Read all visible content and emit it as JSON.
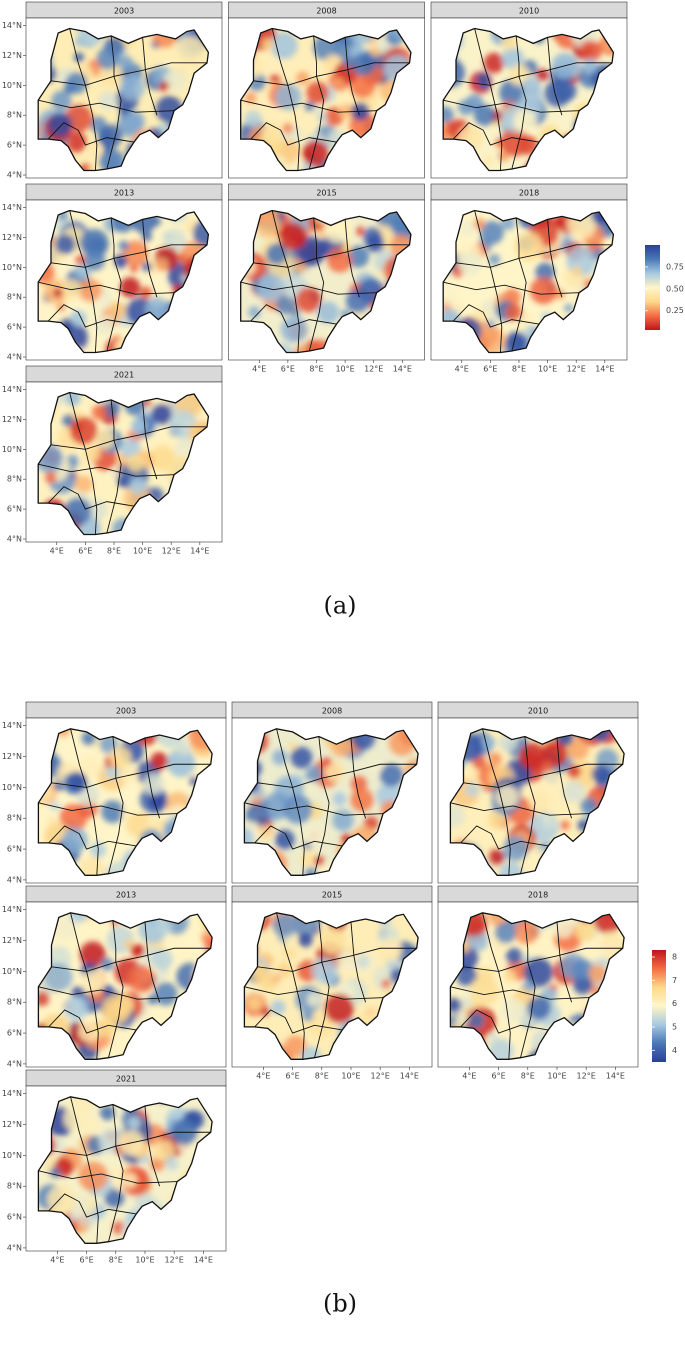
{
  "figures": [
    {
      "caption": "(a)",
      "panels": [
        "2003",
        "2008",
        "2010",
        "2013",
        "2015",
        "2018",
        "2021"
      ],
      "xlim": [
        1.85,
        15.55
      ],
      "ylim": [
        3.8,
        14.5
      ],
      "xticks": [
        {
          "value": 4,
          "label": "4°E"
        },
        {
          "value": 6,
          "label": "6°E"
        },
        {
          "value": 8,
          "label": "8°E"
        },
        {
          "value": 10,
          "label": "10°E"
        },
        {
          "value": 12,
          "label": "12°E"
        },
        {
          "value": 14,
          "label": "14°E"
        }
      ],
      "yticks": [
        {
          "value": 4,
          "label": "4°N"
        },
        {
          "value": 6,
          "label": "6°N"
        },
        {
          "value": 8,
          "label": "8°N"
        },
        {
          "value": 10,
          "label": "10°N"
        },
        {
          "value": 12,
          "label": "12°N"
        },
        {
          "value": 14,
          "label": "14°N"
        }
      ],
      "colorbar": {
        "lim": [
          0.03,
          1.0
        ],
        "ticks": [
          0.25,
          {
            "value": 0.5,
            "label": "0.50"
          },
          0.75
        ],
        "colors": [
          "#c0141c",
          "#f46d43",
          "#fdd98a",
          "#fff5c8",
          "#a7c9e0",
          "#4a78b5",
          "#2a3f9a"
        ]
      }
    },
    {
      "caption": "(b)",
      "panels": [
        "2003",
        "2008",
        "2010",
        "2013",
        "2015",
        "2018",
        "2021"
      ],
      "xlim": [
        1.85,
        15.55
      ],
      "ylim": [
        3.8,
        14.5
      ],
      "xticks": [
        {
          "value": 4,
          "label": "4°E"
        },
        {
          "value": 6,
          "label": "6°E"
        },
        {
          "value": 8,
          "label": "8°E"
        },
        {
          "value": 10,
          "label": "10°E"
        },
        {
          "value": 12,
          "label": "12°E"
        },
        {
          "value": 14,
          "label": "14°E"
        }
      ],
      "yticks": [
        {
          "value": 4,
          "label": "4°N"
        },
        {
          "value": 6,
          "label": "6°N"
        },
        {
          "value": 8,
          "label": "8°N"
        },
        {
          "value": 10,
          "label": "10°N"
        },
        {
          "value": 12,
          "label": "12°N"
        },
        {
          "value": 14,
          "label": "14°N"
        }
      ],
      "colorbar": {
        "lim": [
          3.5,
          8.3
        ],
        "ticks": [
          4,
          5,
          6,
          7,
          8
        ],
        "colors": [
          "#2a3f9a",
          "#4a78b5",
          "#a7c9e0",
          "#fff5c8",
          "#fdd98a",
          "#f46d43",
          "#c0141c"
        ]
      }
    }
  ]
}
